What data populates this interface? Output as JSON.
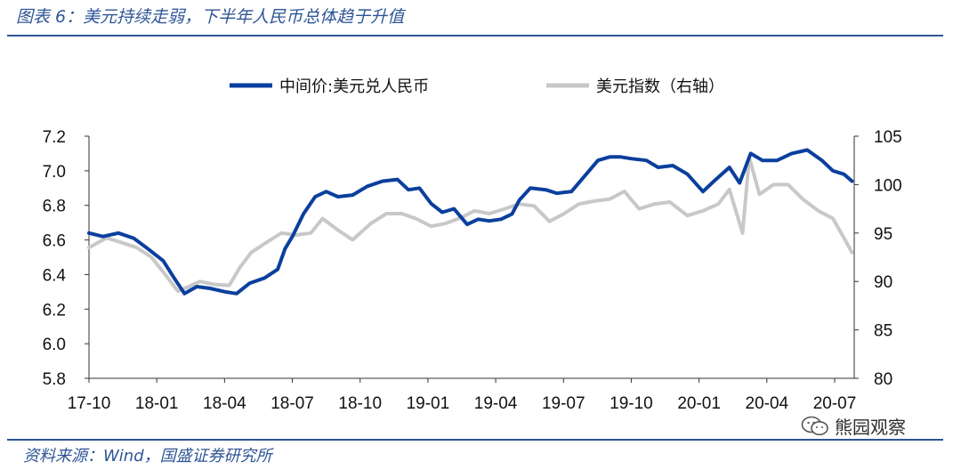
{
  "header": {
    "title": "图表 6：美元持续走弱，下半年人民币总体趋于升值"
  },
  "footer": {
    "source": "资料来源：Wind，国盛证券研究所"
  },
  "watermark": {
    "text": "熊园观察",
    "icon": "wechat-icon"
  },
  "colors": {
    "accent": "#2e5596",
    "series_primary": "#0b3f9e",
    "series_secondary": "#c8c8c8"
  },
  "chart_data": {
    "type": "line",
    "title": "",
    "legend": {
      "placement": "top",
      "entries": [
        "中间价:美元兑人民币",
        "美元指数（右轴）"
      ]
    },
    "x_tick_labels": [
      "17-10",
      "18-01",
      "18-04",
      "18-07",
      "18-10",
      "19-01",
      "19-04",
      "19-07",
      "19-10",
      "20-01",
      "20-04",
      "20-07"
    ],
    "y_left": {
      "range": [
        5.8,
        7.2
      ],
      "ticks": [
        "7.2",
        "7.0",
        "6.8",
        "6.6",
        "6.4",
        "6.2",
        "6.0",
        "5.8"
      ]
    },
    "y_right": {
      "range": [
        80,
        105
      ],
      "ticks": [
        "105",
        "100",
        "95",
        "90",
        "85",
        "80"
      ]
    },
    "grid": false,
    "series": [
      {
        "name": "中间价:美元兑人民币",
        "axis": "left",
        "points": [
          [
            "2017-10-01",
            6.64
          ],
          [
            "2017-10-20",
            6.62
          ],
          [
            "2017-11-10",
            6.64
          ],
          [
            "2017-12-01",
            6.61
          ],
          [
            "2017-12-20",
            6.55
          ],
          [
            "2018-01-10",
            6.48
          ],
          [
            "2018-01-25",
            6.38
          ],
          [
            "2018-02-08",
            6.29
          ],
          [
            "2018-02-25",
            6.33
          ],
          [
            "2018-03-15",
            6.32
          ],
          [
            "2018-04-05",
            6.3
          ],
          [
            "2018-04-20",
            6.29
          ],
          [
            "2018-05-08",
            6.35
          ],
          [
            "2018-05-28",
            6.38
          ],
          [
            "2018-06-15",
            6.43
          ],
          [
            "2018-06-25",
            6.55
          ],
          [
            "2018-07-05",
            6.62
          ],
          [
            "2018-07-20",
            6.75
          ],
          [
            "2018-08-05",
            6.85
          ],
          [
            "2018-08-20",
            6.88
          ],
          [
            "2018-09-05",
            6.85
          ],
          [
            "2018-09-25",
            6.86
          ],
          [
            "2018-10-15",
            6.91
          ],
          [
            "2018-11-05",
            6.94
          ],
          [
            "2018-11-25",
            6.95
          ],
          [
            "2018-12-10",
            6.89
          ],
          [
            "2018-12-25",
            6.9
          ],
          [
            "2019-01-10",
            6.81
          ],
          [
            "2019-01-25",
            6.76
          ],
          [
            "2019-02-10",
            6.78
          ],
          [
            "2019-02-28",
            6.69
          ],
          [
            "2019-03-15",
            6.72
          ],
          [
            "2019-03-30",
            6.71
          ],
          [
            "2019-04-15",
            6.72
          ],
          [
            "2019-04-30",
            6.75
          ],
          [
            "2019-05-10",
            6.83
          ],
          [
            "2019-05-25",
            6.9
          ],
          [
            "2019-06-15",
            6.89
          ],
          [
            "2019-06-30",
            6.87
          ],
          [
            "2019-07-20",
            6.88
          ],
          [
            "2019-08-05",
            6.96
          ],
          [
            "2019-08-25",
            7.06
          ],
          [
            "2019-09-10",
            7.08
          ],
          [
            "2019-09-25",
            7.08
          ],
          [
            "2019-10-10",
            7.07
          ],
          [
            "2019-10-30",
            7.06
          ],
          [
            "2019-11-15",
            7.02
          ],
          [
            "2019-12-05",
            7.03
          ],
          [
            "2019-12-25",
            6.98
          ],
          [
            "2020-01-15",
            6.88
          ],
          [
            "2020-01-30",
            6.94
          ],
          [
            "2020-02-20",
            7.02
          ],
          [
            "2020-03-05",
            6.93
          ],
          [
            "2020-03-20",
            7.1
          ],
          [
            "2020-04-05",
            7.06
          ],
          [
            "2020-04-25",
            7.06
          ],
          [
            "2020-05-15",
            7.1
          ],
          [
            "2020-06-05",
            7.12
          ],
          [
            "2020-06-25",
            7.06
          ],
          [
            "2020-07-10",
            7.0
          ],
          [
            "2020-07-25",
            6.98
          ],
          [
            "2020-08-05",
            6.94
          ]
        ]
      },
      {
        "name": "美元指数（右轴）",
        "axis": "right",
        "points": [
          [
            "2017-10-01",
            93.5
          ],
          [
            "2017-10-25",
            94.5
          ],
          [
            "2017-11-15",
            94.0
          ],
          [
            "2017-12-05",
            93.5
          ],
          [
            "2017-12-25",
            92.5
          ],
          [
            "2018-01-15",
            90.5
          ],
          [
            "2018-01-30",
            89.0
          ],
          [
            "2018-02-15",
            89.5
          ],
          [
            "2018-03-01",
            90.0
          ],
          [
            "2018-03-20",
            89.7
          ],
          [
            "2018-04-10",
            89.6
          ],
          [
            "2018-04-25",
            91.5
          ],
          [
            "2018-05-10",
            93.0
          ],
          [
            "2018-05-30",
            94.0
          ],
          [
            "2018-06-20",
            95.0
          ],
          [
            "2018-07-10",
            94.8
          ],
          [
            "2018-07-30",
            95.0
          ],
          [
            "2018-08-15",
            96.5
          ],
          [
            "2018-09-05",
            95.3
          ],
          [
            "2018-09-25",
            94.3
          ],
          [
            "2018-10-20",
            96.0
          ],
          [
            "2018-11-10",
            97.0
          ],
          [
            "2018-12-01",
            97.0
          ],
          [
            "2018-12-20",
            96.5
          ],
          [
            "2019-01-10",
            95.7
          ],
          [
            "2019-01-30",
            96.0
          ],
          [
            "2019-02-20",
            96.6
          ],
          [
            "2019-03-10",
            97.3
          ],
          [
            "2019-03-30",
            97.0
          ],
          [
            "2019-04-20",
            97.5
          ],
          [
            "2019-05-10",
            98.0
          ],
          [
            "2019-05-30",
            97.8
          ],
          [
            "2019-06-20",
            96.2
          ],
          [
            "2019-07-10",
            97.0
          ],
          [
            "2019-07-30",
            98.0
          ],
          [
            "2019-08-20",
            98.3
          ],
          [
            "2019-09-10",
            98.5
          ],
          [
            "2019-09-30",
            99.3
          ],
          [
            "2019-10-20",
            97.5
          ],
          [
            "2019-11-10",
            98.0
          ],
          [
            "2019-12-01",
            98.2
          ],
          [
            "2019-12-25",
            96.8
          ],
          [
            "2020-01-15",
            97.3
          ],
          [
            "2020-02-05",
            98.0
          ],
          [
            "2020-02-20",
            99.5
          ],
          [
            "2020-03-09",
            95.0
          ],
          [
            "2020-03-18",
            102.8
          ],
          [
            "2020-04-01",
            99.0
          ],
          [
            "2020-04-20",
            100.0
          ],
          [
            "2020-05-10",
            100.0
          ],
          [
            "2020-05-30",
            98.5
          ],
          [
            "2020-06-20",
            97.3
          ],
          [
            "2020-07-10",
            96.5
          ],
          [
            "2020-07-25",
            94.5
          ],
          [
            "2020-08-05",
            93.0
          ]
        ]
      }
    ]
  }
}
